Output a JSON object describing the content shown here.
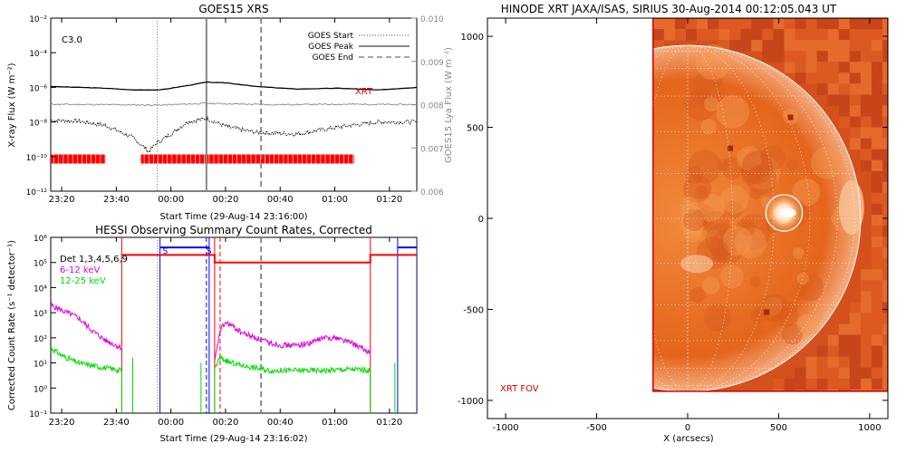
{
  "chart_data": [
    {
      "type": "line",
      "title": "GOES15 XRS",
      "xlabel": "Start Time (29-Aug-14 23:16:00)",
      "ylabel": "X-ray Flux (W m⁻²)",
      "ylabel_right": "GOES15 Lya Flux (W m⁻²)",
      "annotation": "C3.0",
      "x_ticks": [
        "23:20",
        "23:40",
        "00:00",
        "00:20",
        "00:40",
        "01:00",
        "01:20"
      ],
      "x_tick_minutes": [
        4,
        24,
        44,
        64,
        84,
        104,
        124
      ],
      "xlim_minutes": [
        0,
        134
      ],
      "y_ticks": [
        "10⁻²",
        "10⁻⁴",
        "10⁻⁶",
        "10⁻⁸",
        "10⁻¹⁰",
        "10⁻¹²"
      ],
      "y_tick_exponents": [
        -2,
        -4,
        -6,
        -8,
        -10,
        -12
      ],
      "ylim_log": [
        -12,
        -2
      ],
      "y_right_ticks": [
        "0.010",
        "0.009",
        "0.008",
        "0.007",
        "0.006"
      ],
      "y_right_values": [
        0.01,
        0.009,
        0.008,
        0.007,
        0.006
      ],
      "legend": [
        {
          "label": "GOES Start",
          "style": "dotted"
        },
        {
          "label": "GOES Peak",
          "style": "solid"
        },
        {
          "label": "GOES End",
          "style": "dashed"
        }
      ],
      "legend_position": "top-right",
      "markers_minutes": {
        "start": 39,
        "peak": 57,
        "end": 77
      },
      "xrt_label": "XRT",
      "xrt_coverage_minutes": [
        [
          0,
          20
        ],
        [
          33,
          111
        ]
      ],
      "series": [
        {
          "name": "long",
          "color": "#000000",
          "x": [
            0,
            10,
            20,
            30,
            40,
            50,
            57,
            65,
            75,
            90,
            105,
            120,
            134
          ],
          "y": [
            -5.95,
            -6.0,
            -6.05,
            -6.15,
            -6.15,
            -5.9,
            -5.7,
            -5.75,
            -5.95,
            -6.1,
            -6.05,
            -6.15,
            -6.0
          ]
        },
        {
          "name": "short",
          "color": "#000000",
          "x": [
            0,
            10,
            20,
            30,
            36,
            39,
            44,
            50,
            57,
            65,
            75,
            90,
            105,
            120,
            134
          ],
          "y": [
            -7.9,
            -7.95,
            -8.2,
            -8.9,
            -9.7,
            -9.2,
            -8.7,
            -8.0,
            -7.8,
            -8.3,
            -8.6,
            -8.7,
            -8.3,
            -8.0,
            -8.0
          ]
        },
        {
          "name": "lya",
          "color": "#888888",
          "x": [
            0,
            20,
            40,
            57,
            80,
            110,
            134
          ],
          "y": [
            0.00801,
            0.008,
            0.00799,
            0.00803,
            0.008,
            0.00801,
            0.008
          ]
        }
      ]
    },
    {
      "type": "line",
      "title": "HESSI Observing Summary Count Rates, Corrected",
      "xlabel": "Start Time (29-Aug-14 23:16:02)",
      "ylabel": "Corrected Count Rate (s⁻¹ detector⁻¹)",
      "x_ticks": [
        "23:20",
        "23:40",
        "00:00",
        "00:20",
        "00:40",
        "01:00",
        "01:20"
      ],
      "x_tick_minutes": [
        4,
        24,
        44,
        64,
        84,
        104,
        124
      ],
      "xlim_minutes": [
        0,
        134
      ],
      "y_ticks": [
        "10⁶",
        "10⁵",
        "10⁴",
        "10³",
        "10²",
        "10¹",
        "10⁰",
        "10⁻¹"
      ],
      "y_tick_exponents": [
        6,
        5,
        4,
        3,
        2,
        1,
        0,
        -1
      ],
      "ylim_log": [
        -1,
        6
      ],
      "legend": [
        {
          "label": "Det 1,3,4,5,6,9",
          "color": "#000000"
        },
        {
          "label": "6-12 keV",
          "color": "#e000e0"
        },
        {
          "label": "12-25 keV",
          "color": "#00dd00"
        }
      ],
      "legend_position": "top-left",
      "s_labels": [
        "S",
        "S"
      ],
      "markers_minutes": {
        "start": 39,
        "peak": 57,
        "end": 77
      },
      "red_lines_minutes": [
        26,
        60,
        117,
        134
      ],
      "red_dashed_minutes": [
        62
      ],
      "blue_lines_minutes": [
        40,
        58,
        127,
        134
      ],
      "blue_dashed_minutes": [
        57
      ],
      "series": [
        {
          "name": "6-12 keV",
          "color": "#e000e0",
          "x": [
            0,
            4,
            10,
            15,
            20,
            26
          ],
          "y": [
            3.3,
            3.1,
            2.8,
            2.3,
            1.9,
            1.6
          ]
        },
        {
          "name": "6-12 keV",
          "color": "#e000e0",
          "x": [
            60,
            62,
            64,
            66,
            70,
            75,
            80,
            85,
            90,
            95,
            100,
            105,
            110,
            117
          ],
          "y": [
            1.0,
            2.3,
            2.6,
            2.5,
            2.2,
            2.0,
            1.8,
            1.7,
            1.7,
            1.8,
            2.0,
            2.0,
            1.8,
            1.4
          ]
        },
        {
          "name": "12-25 keV",
          "color": "#00dd00",
          "x": [
            0,
            4,
            10,
            15,
            20,
            26
          ],
          "y": [
            1.6,
            1.3,
            1.0,
            0.9,
            0.8,
            0.7
          ]
        },
        {
          "name": "12-25 keV",
          "color": "#00dd00",
          "x": [
            60,
            62,
            66,
            70,
            80,
            90,
            100,
            110,
            117
          ],
          "y": [
            0.8,
            1.2,
            1.0,
            0.9,
            0.7,
            0.7,
            0.7,
            0.75,
            0.7
          ]
        },
        {
          "name": "attenuator",
          "color": "#ff0000",
          "x": [
            26,
            60,
            60,
            117,
            117,
            134
          ],
          "y": [
            5.3,
            5.3,
            5.0,
            5.0,
            5.3,
            5.3
          ]
        },
        {
          "name": "decimation",
          "color": "#0000ff",
          "x": [
            40,
            58,
            127,
            134
          ],
          "y": [
            5.6,
            5.6,
            5.6,
            5.6
          ]
        }
      ]
    },
    {
      "type": "scatter",
      "title": "HINODE XRT JAXA/ISAS, SIRIUS 30-Aug-2014 00:12:05.043 UT",
      "xlabel": "X (arcsecs)",
      "ylabel": "",
      "x_ticks": [
        "-1000",
        "-500",
        "0",
        "500",
        "1000"
      ],
      "x_tick_values": [
        -1000,
        -500,
        0,
        500,
        1000
      ],
      "y_ticks": [
        "1000",
        "500",
        "0",
        "-500",
        "-1000"
      ],
      "y_tick_values": [
        1000,
        500,
        0,
        -500,
        -1000
      ],
      "xlim": [
        -1100,
        1100
      ],
      "ylim": [
        -1100,
        1100
      ],
      "fov_label": "XRT FOV",
      "image_extent_arcsec": {
        "x0": -190,
        "x1": 1100,
        "y0": -950,
        "y1": 1100
      },
      "solar_radius_arcsec": 950,
      "flare_circle": {
        "x": 530,
        "y": 30,
        "r": 100
      },
      "colors": {
        "disk": "#e05c14",
        "bright": "#ffe9c8",
        "dark": "#a02a00",
        "fov": "#cc0000",
        "white": "#ffffff"
      }
    }
  ]
}
